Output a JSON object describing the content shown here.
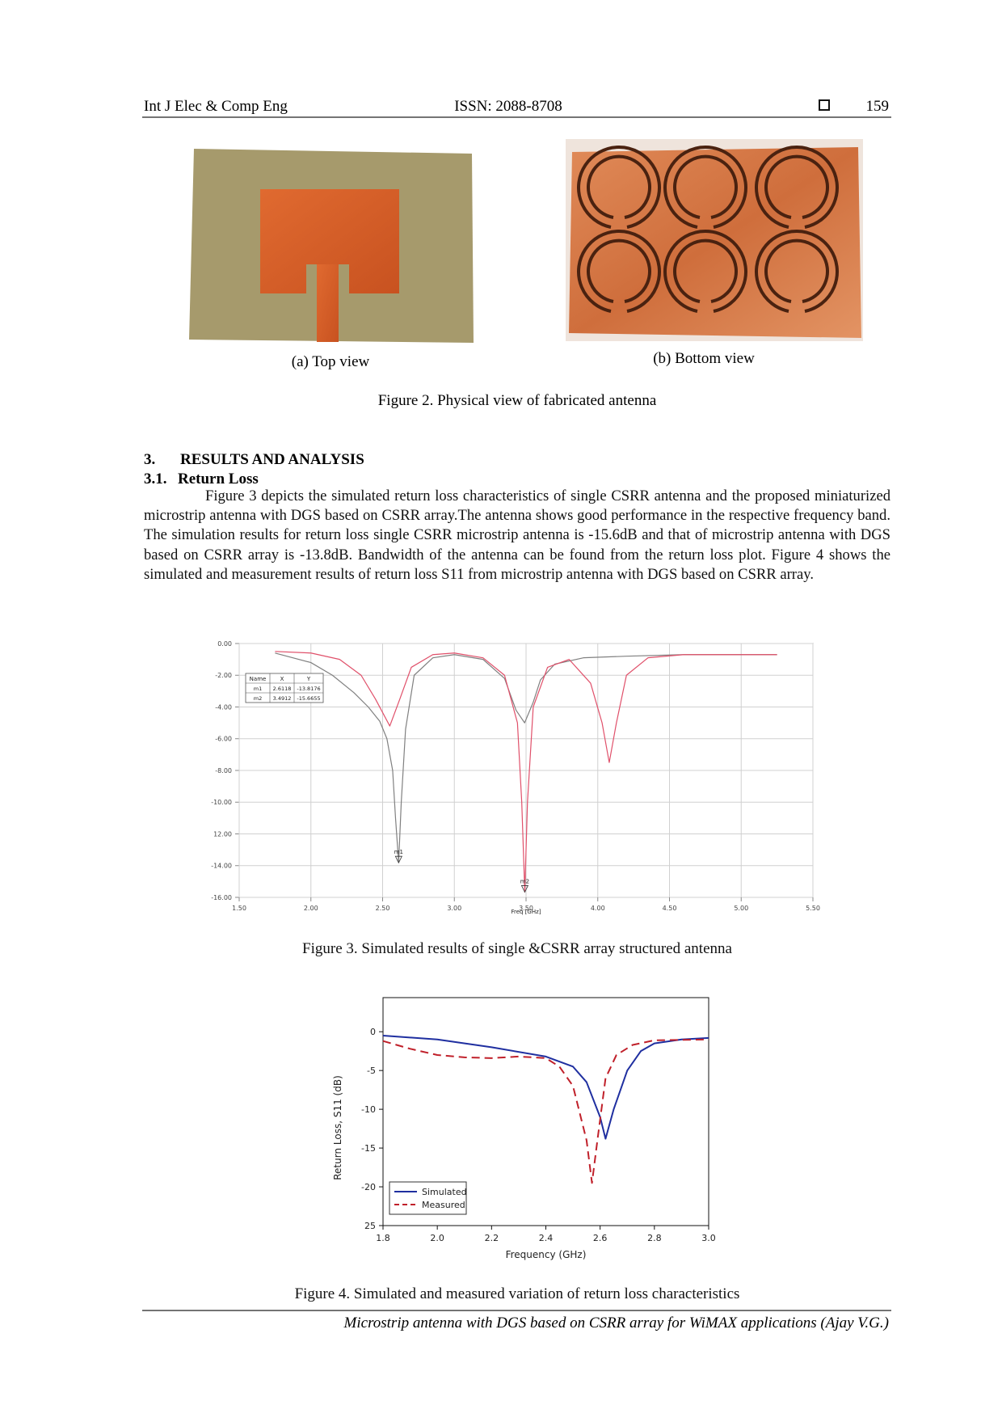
{
  "header": {
    "journal": "Int J Elec & Comp Eng",
    "issn": "ISSN: 2088-8708",
    "page": "159"
  },
  "figure2": {
    "subcaptions": [
      "(a) Top view",
      "(b) Bottom view"
    ],
    "caption": "Figure 2. Physical view of fabricated antenna"
  },
  "section": {
    "number": "3.",
    "title": "RESULTS AND ANALYSIS"
  },
  "subsection": {
    "number": "3.1.",
    "title": "Return Loss"
  },
  "paragraph": "Figure 3 depicts the simulated return loss characteristics of single CSRR antenna and the proposed miniaturized microstrip antenna with DGS based on CSRR array.The antenna shows good performance in the respective frequency band. The simulation results for return loss single CSRR microstrip antenna is -15.6dB and that of microstrip antenna with DGS based on CSRR array is -13.8dB. Bandwidth of the antenna can be found from the return loss plot. Figure 4 shows the simulated and measurement results of return loss S11 from microstrip antenna with DGS based on CSRR array.",
  "chart_data": [
    {
      "type": "line",
      "caption": "Figure 3. Simulated results of single &CSRR array structured antenna",
      "x_label": "Freq [GHz]",
      "grid": true,
      "xlim": [
        1.5,
        5.5
      ],
      "ylim": [
        -16,
        0
      ],
      "xticks": [
        {
          "value": 1.5,
          "label": "1.50"
        },
        {
          "value": 2,
          "label": "2.00"
        },
        {
          "value": 2.5,
          "label": "2.50"
        },
        {
          "value": 3,
          "label": "3.00"
        },
        {
          "value": 3.5,
          "label": "3.50"
        },
        {
          "value": 4,
          "label": "4.00"
        },
        {
          "value": 4.5,
          "label": "4.50"
        },
        {
          "value": 5,
          "label": "5.00"
        },
        {
          "value": 5.5,
          "label": "5.50"
        }
      ],
      "yticks": [
        {
          "value": 0,
          "label": "0.00"
        },
        {
          "value": -2,
          "label": "-2.00"
        },
        {
          "value": -4,
          "label": "-4.00"
        },
        {
          "value": -6,
          "label": "-6.00"
        },
        {
          "value": -8,
          "label": "-8.00"
        },
        {
          "value": -10,
          "label": "-10.00"
        },
        {
          "value": -12,
          "label": "12.00"
        },
        {
          "value": -14,
          "label": "-14.00"
        },
        {
          "value": -16,
          "label": "-16.00"
        }
      ],
      "series": [
        {
          "color": "#808080",
          "x": [
            1.75,
            2.0,
            2.15,
            2.3,
            2.4,
            2.48,
            2.53,
            2.57,
            2.59,
            2.6118,
            2.63,
            2.66,
            2.72,
            2.85,
            3.0,
            3.2,
            3.35,
            3.43,
            3.49,
            3.55,
            3.6,
            3.7,
            3.9,
            4.2,
            4.6,
            5.25
          ],
          "values": [
            -0.6,
            -1.2,
            -2.0,
            -3.1,
            -4.0,
            -4.9,
            -6.0,
            -8.0,
            -11.0,
            -13.8,
            -10.0,
            -5.4,
            -2.0,
            -0.9,
            -0.7,
            -1.0,
            -2.2,
            -4.2,
            -5.0,
            -3.7,
            -2.3,
            -1.3,
            -0.9,
            -0.8,
            -0.7,
            -0.7
          ]
        },
        {
          "color": "#e0506a",
          "x": [
            1.75,
            2.0,
            2.2,
            2.35,
            2.45,
            2.55,
            2.62,
            2.7,
            2.85,
            3.0,
            3.2,
            3.35,
            3.44,
            3.47,
            3.4912,
            3.51,
            3.55,
            3.65,
            3.8,
            3.95,
            4.03,
            4.08,
            4.13,
            4.2,
            4.35,
            4.6,
            5.25
          ],
          "values": [
            -0.5,
            -0.6,
            -1.0,
            -2.0,
            -3.5,
            -5.2,
            -3.5,
            -1.5,
            -0.7,
            -0.6,
            -0.9,
            -2.0,
            -5.0,
            -10.0,
            -15.67,
            -10.0,
            -4.0,
            -1.5,
            -1.0,
            -2.5,
            -5.0,
            -7.5,
            -5.0,
            -2.0,
            -0.9,
            -0.7,
            -0.7
          ]
        }
      ],
      "marker_table": {
        "columns": [
          "Name",
          "X",
          "Y"
        ],
        "rows": [
          [
            "m1",
            2.6118,
            -13.8176
          ],
          [
            "m2",
            3.4912,
            -15.6655
          ]
        ]
      }
    },
    {
      "type": "line",
      "caption": "Figure 4. Simulated and measured variation of return loss characteristics",
      "x_label": "Frequency (GHz)",
      "y_label": "Return Loss, S11 (dB)",
      "grid": false,
      "legend": "lower left",
      "xlim": [
        1.8,
        3.0
      ],
      "ylim": [
        -25,
        4.4
      ],
      "xticks": [
        1.8,
        {
          "value": 2,
          "label": "2.0"
        },
        2.2,
        2.4,
        2.6,
        2.8,
        {
          "value": 3,
          "label": "3.0"
        }
      ],
      "yticks": [
        0,
        -5,
        -10,
        -15,
        -20,
        {
          "value": -25,
          "label": "25"
        }
      ],
      "series": [
        {
          "name": "Simulated",
          "color": "#1f2fa0",
          "line_style": "solid",
          "x": [
            1.8,
            2.0,
            2.2,
            2.4,
            2.5,
            2.55,
            2.6,
            2.62,
            2.65,
            2.7,
            2.75,
            2.8,
            2.9,
            3.0
          ],
          "values": [
            -0.5,
            -1.0,
            -2.0,
            -3.2,
            -4.5,
            -6.5,
            -11.0,
            -13.8,
            -10.0,
            -5.0,
            -2.5,
            -1.5,
            -1.0,
            -0.8
          ]
        },
        {
          "name": "Measured",
          "color": "#c0202a",
          "line_style": "dashed",
          "x": [
            1.8,
            1.9,
            2.0,
            2.1,
            2.2,
            2.3,
            2.4,
            2.45,
            2.5,
            2.55,
            2.57,
            2.59,
            2.62,
            2.66,
            2.72,
            2.8,
            3.0
          ],
          "values": [
            -1.2,
            -2.2,
            -3.0,
            -3.3,
            -3.4,
            -3.2,
            -3.4,
            -4.5,
            -7.0,
            -14.0,
            -19.5,
            -14.0,
            -6.0,
            -3.0,
            -1.7,
            -1.1,
            -1.0
          ]
        }
      ]
    }
  ],
  "footer": "Microstrip antenna with DGS based on CSRR array for WiMAX applications (Ajay V.G.)"
}
